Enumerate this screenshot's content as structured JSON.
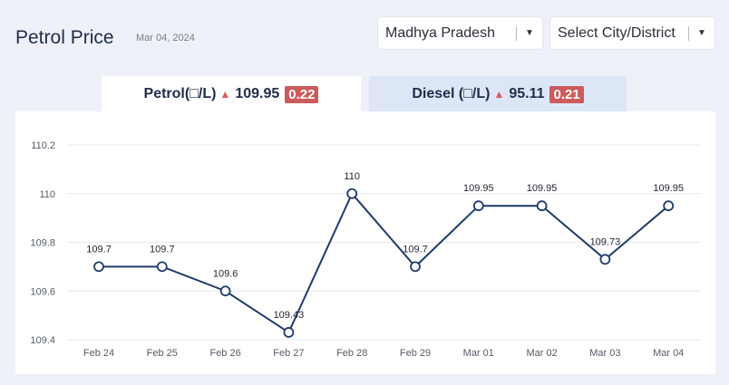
{
  "header": {
    "title": "Petrol Price",
    "date": "Mar 04, 2024"
  },
  "filters": {
    "state": {
      "value": "Madhya Pradesh"
    },
    "city": {
      "placeholder": "Select City/District"
    }
  },
  "tabs": {
    "petrol": {
      "label": "Petrol(□/L)",
      "price": "109.95",
      "change": "0.22",
      "active": true
    },
    "diesel": {
      "label": "Diesel (□/L)",
      "price": "95.11",
      "change": "0.21",
      "active": false
    }
  },
  "colors": {
    "line": "#1f3a6b",
    "badge": "#cc5b5b",
    "up_arrow": "#d95c5c",
    "inactive_tab": "#dde6f7"
  },
  "icons": {
    "dropdown": "caret-down-icon",
    "trend": "up-triangle-icon"
  },
  "chart_data": {
    "type": "line",
    "categories": [
      "Feb 24",
      "Feb 25",
      "Feb 26",
      "Feb 27",
      "Feb 28",
      "Feb 29",
      "Mar 01",
      "Mar 02",
      "Mar 03",
      "Mar 04"
    ],
    "values": [
      109.7,
      109.7,
      109.6,
      109.43,
      110,
      109.7,
      109.95,
      109.95,
      109.73,
      109.95
    ],
    "yticks": [
      "109.4",
      "109.6",
      "109.8",
      "110",
      "110.2"
    ],
    "ylim": [
      109.4,
      110.2
    ],
    "grid": true,
    "data_labels": true
  }
}
